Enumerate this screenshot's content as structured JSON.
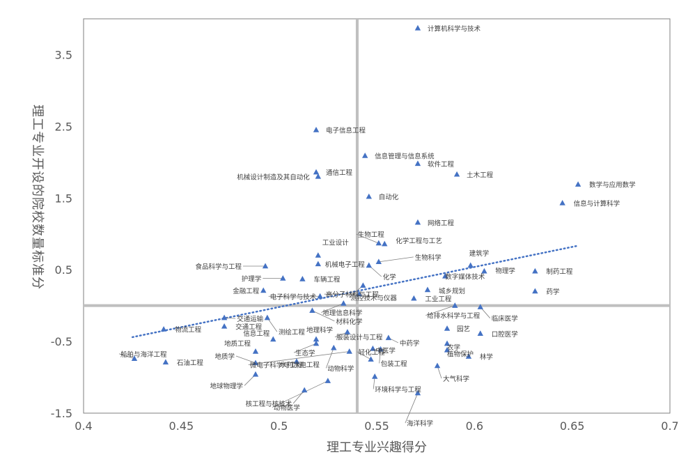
{
  "chart_data": {
    "type": "scatter",
    "title": "",
    "xlabel": "理工专业兴趣得分",
    "ylabel": "理工专业开设的院校数量标准分",
    "xlim": [
      0.4,
      0.7
    ],
    "ylim": [
      -1.5,
      4.0
    ],
    "x_ticks": [
      "0.4",
      "0.45",
      "0.5",
      "0.55",
      "0.6",
      "0.65",
      "0.7"
    ],
    "y_ticks": [
      "3.5",
      "2.5",
      "1.5",
      "0.5",
      "-0.5",
      "-1.5"
    ],
    "grid": false,
    "quadrant_lines": {
      "x": 0.54,
      "y": 0.0
    },
    "trendline": {
      "style": "dotted",
      "color": "#4472c4",
      "from": [
        0.425,
        -0.44
      ],
      "to": [
        0.652,
        0.83
      ]
    },
    "marker": {
      "shape": "triangle",
      "color": "#4472c4"
    },
    "points": [
      {
        "x": 0.571,
        "y": 3.87,
        "label": "计算机科学与技术"
      },
      {
        "x": 0.519,
        "y": 2.45,
        "label": "电子信息工程"
      },
      {
        "x": 0.544,
        "y": 2.09,
        "label": "信息管理与信息系统"
      },
      {
        "x": 0.571,
        "y": 1.98,
        "label": "软件工程"
      },
      {
        "x": 0.519,
        "y": 1.86,
        "label": "通信工程"
      },
      {
        "x": 0.52,
        "y": 1.8,
        "label": "机械设计制造及其自动化"
      },
      {
        "x": 0.591,
        "y": 1.83,
        "label": "土木工程"
      },
      {
        "x": 0.653,
        "y": 1.69,
        "label": "数学与应用数学"
      },
      {
        "x": 0.645,
        "y": 1.43,
        "label": "信息与计算科学"
      },
      {
        "x": 0.546,
        "y": 1.52,
        "label": "自动化"
      },
      {
        "x": 0.571,
        "y": 1.16,
        "label": "网络工程"
      },
      {
        "x": 0.551,
        "y": 0.87,
        "label": "生物工程"
      },
      {
        "x": 0.554,
        "y": 0.86,
        "label": "化学工程与工艺"
      },
      {
        "x": 0.52,
        "y": 0.7,
        "label": "工业设计"
      },
      {
        "x": 0.598,
        "y": 0.56,
        "label": "建筑学"
      },
      {
        "x": 0.551,
        "y": 0.61,
        "label": "生物科学"
      },
      {
        "x": 0.52,
        "y": 0.58,
        "label": "机械电子工程"
      },
      {
        "x": 0.546,
        "y": 0.56,
        "label": "化学"
      },
      {
        "x": 0.493,
        "y": 0.55,
        "label": "食品科学与工程"
      },
      {
        "x": 0.605,
        "y": 0.48,
        "label": "物理学"
      },
      {
        "x": 0.631,
        "y": 0.48,
        "label": "制药工程"
      },
      {
        "x": 0.585,
        "y": 0.41,
        "label": "数字媒体技术"
      },
      {
        "x": 0.502,
        "y": 0.38,
        "label": "护理学"
      },
      {
        "x": 0.512,
        "y": 0.37,
        "label": "车辆工程"
      },
      {
        "x": 0.543,
        "y": 0.28,
        "label": "测控技术与仪器"
      },
      {
        "x": 0.576,
        "y": 0.22,
        "label": "城乡规划"
      },
      {
        "x": 0.631,
        "y": 0.2,
        "label": "药学"
      },
      {
        "x": 0.492,
        "y": 0.21,
        "label": "金融工程"
      },
      {
        "x": 0.521,
        "y": 0.13,
        "label": "电子科学与技术"
      },
      {
        "x": 0.541,
        "y": 0.16,
        "label": "高分子材料与工程"
      },
      {
        "x": 0.569,
        "y": 0.1,
        "label": "工业工程"
      },
      {
        "x": 0.533,
        "y": 0.03,
        "label": "地理信息科学"
      },
      {
        "x": 0.59,
        "y": 0.0,
        "label": "给排水科学与工程"
      },
      {
        "x": 0.603,
        "y": -0.02,
        "label": "临床医学"
      },
      {
        "x": 0.517,
        "y": -0.07,
        "label": "材料化学"
      },
      {
        "x": 0.472,
        "y": -0.17,
        "label": "交通运输"
      },
      {
        "x": 0.494,
        "y": -0.17,
        "label": "测绘工程"
      },
      {
        "x": 0.441,
        "y": -0.33,
        "label": "物流工程"
      },
      {
        "x": 0.472,
        "y": -0.29,
        "label": "交通工程"
      },
      {
        "x": 0.586,
        "y": -0.32,
        "label": "园艺"
      },
      {
        "x": 0.603,
        "y": -0.39,
        "label": "口腔医学"
      },
      {
        "x": 0.497,
        "y": -0.47,
        "label": "信息工程"
      },
      {
        "x": 0.519,
        "y": -0.47,
        "label": "地理科学"
      },
      {
        "x": 0.535,
        "y": -0.37,
        "label": "服装设计与工程"
      },
      {
        "x": 0.556,
        "y": -0.45,
        "label": "中药学"
      },
      {
        "x": 0.519,
        "y": -0.53,
        "label": "生态学"
      },
      {
        "x": 0.536,
        "y": -0.64,
        "label": "微电子科学与工程"
      },
      {
        "x": 0.548,
        "y": -0.6,
        "label": "中医学"
      },
      {
        "x": 0.586,
        "y": -0.53,
        "label": "农学"
      },
      {
        "x": 0.586,
        "y": -0.62,
        "label": "植物保护"
      },
      {
        "x": 0.597,
        "y": -0.71,
        "label": "林学"
      },
      {
        "x": 0.426,
        "y": -0.74,
        "label": "船舶与海洋工程"
      },
      {
        "x": 0.488,
        "y": -0.64,
        "label": "地质工程"
      },
      {
        "x": 0.488,
        "y": -0.8,
        "label": "地质学"
      },
      {
        "x": 0.442,
        "y": -0.79,
        "label": "石油工程"
      },
      {
        "x": 0.509,
        "y": -0.78,
        "label": "水利水电工程"
      },
      {
        "x": 0.528,
        "y": -0.59,
        "label": "动物科学"
      },
      {
        "x": 0.547,
        "y": -0.75,
        "label": "轻化工程"
      },
      {
        "x": 0.552,
        "y": -0.61,
        "label": "包装工程"
      },
      {
        "x": 0.581,
        "y": -0.84,
        "label": "大气科学"
      },
      {
        "x": 0.488,
        "y": -0.96,
        "label": "地球物理学"
      },
      {
        "x": 0.525,
        "y": -1.05,
        "label": "动物医学"
      },
      {
        "x": 0.549,
        "y": -0.99,
        "label": "环境科学与工程"
      },
      {
        "x": 0.513,
        "y": -1.18,
        "label": "核工程与核技术"
      },
      {
        "x": 0.571,
        "y": -1.22,
        "label": "海洋科学"
      }
    ]
  }
}
